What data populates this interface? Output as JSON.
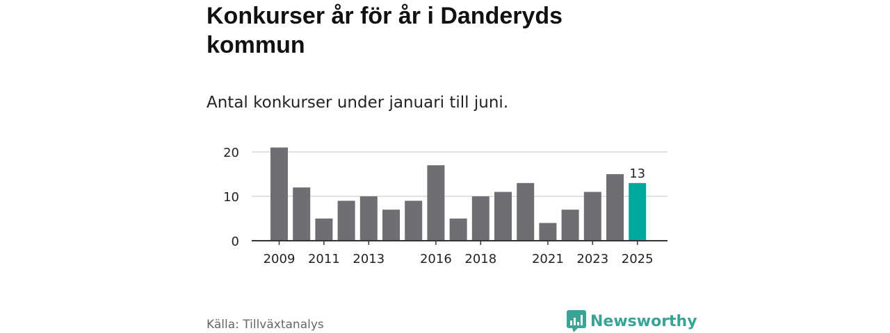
{
  "title": "Konkurser år för år i Danderyds kommun",
  "subtitle": "Antal konkurser under januari till juni.",
  "source": "Källa: Tillväxtanalys",
  "brand": {
    "name": "Newsworthy",
    "icon": "newsworthy-logo-icon"
  },
  "colors": {
    "bar": "#6f6e74",
    "highlight": "#00a99d",
    "grid": "#d9d9d9",
    "axis": "#333333",
    "brand": "#3aa396"
  },
  "chart_data": {
    "type": "bar",
    "categories": [
      "2009",
      "2010",
      "2011",
      "2012",
      "2013",
      "2014",
      "2015",
      "2016",
      "2017",
      "2018",
      "2019",
      "2020",
      "2021",
      "2022",
      "2023",
      "2024",
      "2025"
    ],
    "values": [
      21,
      12,
      5,
      9,
      10,
      7,
      9,
      17,
      5,
      10,
      11,
      13,
      4,
      7,
      11,
      15,
      13
    ],
    "highlight": "2025",
    "data_labels": [
      {
        "category": "2025",
        "label": "13"
      }
    ],
    "x_tick_labels": [
      "2009",
      "2011",
      "2013",
      "2016",
      "2018",
      "2021",
      "2023",
      "2025"
    ],
    "y_ticks": [
      0,
      10,
      20
    ],
    "ylim": [
      0,
      20
    ],
    "grid": true,
    "legend": "none",
    "xlabel": "",
    "ylabel": ""
  }
}
